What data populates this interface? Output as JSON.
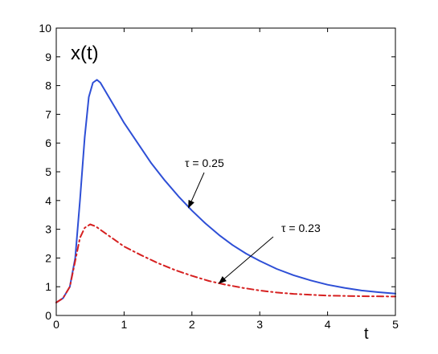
{
  "chart_data": {
    "type": "line",
    "title": "",
    "xlabel": "t",
    "ylabel": "x(t)",
    "xlim": [
      0,
      5
    ],
    "ylim": [
      0,
      10
    ],
    "xticks": [
      0,
      1,
      2,
      3,
      4,
      5
    ],
    "yticks": [
      0,
      1,
      2,
      3,
      4,
      5,
      6,
      7,
      8,
      9,
      10
    ],
    "grid": false,
    "series": [
      {
        "name": "τ = 0.25",
        "color": "#2e4fd6",
        "style": "solid",
        "points": [
          [
            0,
            0.45
          ],
          [
            0.1,
            0.6
          ],
          [
            0.2,
            1.0
          ],
          [
            0.28,
            2.0
          ],
          [
            0.35,
            4.0
          ],
          [
            0.42,
            6.2
          ],
          [
            0.48,
            7.6
          ],
          [
            0.54,
            8.1
          ],
          [
            0.6,
            8.2
          ],
          [
            0.65,
            8.1
          ],
          [
            0.75,
            7.7
          ],
          [
            0.9,
            7.1
          ],
          [
            1.0,
            6.7
          ],
          [
            1.2,
            6.0
          ],
          [
            1.4,
            5.3
          ],
          [
            1.6,
            4.7
          ],
          [
            1.8,
            4.15
          ],
          [
            2.0,
            3.65
          ],
          [
            2.2,
            3.2
          ],
          [
            2.4,
            2.8
          ],
          [
            2.6,
            2.45
          ],
          [
            2.8,
            2.15
          ],
          [
            3.0,
            1.9
          ],
          [
            3.25,
            1.62
          ],
          [
            3.5,
            1.4
          ],
          [
            3.75,
            1.22
          ],
          [
            4.0,
            1.07
          ],
          [
            4.25,
            0.96
          ],
          [
            4.5,
            0.87
          ],
          [
            4.75,
            0.81
          ],
          [
            5.0,
            0.76
          ]
        ]
      },
      {
        "name": "τ = 0.23",
        "color": "#d62020",
        "style": "dashdot",
        "points": [
          [
            0,
            0.45
          ],
          [
            0.1,
            0.6
          ],
          [
            0.2,
            1.0
          ],
          [
            0.28,
            1.9
          ],
          [
            0.35,
            2.7
          ],
          [
            0.42,
            3.05
          ],
          [
            0.5,
            3.17
          ],
          [
            0.58,
            3.1
          ],
          [
            0.7,
            2.9
          ],
          [
            0.85,
            2.65
          ],
          [
            1.0,
            2.4
          ],
          [
            1.25,
            2.1
          ],
          [
            1.5,
            1.82
          ],
          [
            1.75,
            1.58
          ],
          [
            2.0,
            1.38
          ],
          [
            2.25,
            1.2
          ],
          [
            2.5,
            1.07
          ],
          [
            2.75,
            0.96
          ],
          [
            3.0,
            0.87
          ],
          [
            3.25,
            0.8
          ],
          [
            3.5,
            0.75
          ],
          [
            3.75,
            0.72
          ],
          [
            4.0,
            0.69
          ],
          [
            4.5,
            0.67
          ],
          [
            5.0,
            0.66
          ]
        ]
      }
    ],
    "annotations": [
      {
        "text": "τ = 0.25",
        "arrow_to": [
          1.95,
          3.75
        ]
      },
      {
        "text": "τ = 0.23",
        "arrow_to": [
          2.4,
          1.12
        ]
      }
    ]
  }
}
